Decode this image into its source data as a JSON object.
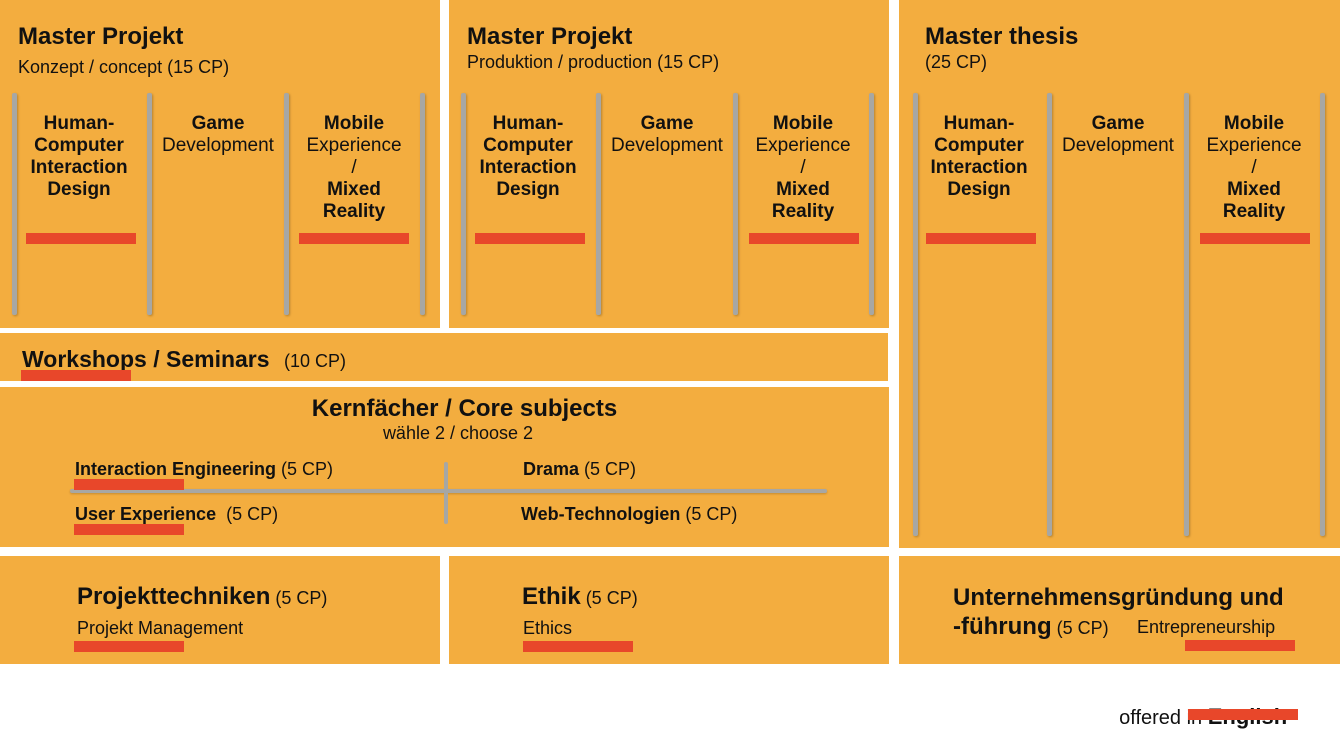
{
  "panels": {
    "mp_konzept": {
      "title": "Master Projekt",
      "subtitle": "Konzept / concept (15 CP)"
    },
    "mp_produktion": {
      "title": "Master Projekt",
      "subtitle": "Produktion / production (15 CP)"
    },
    "thesis": {
      "title": "Master thesis",
      "subtitle": "(25 CP)"
    }
  },
  "columns": {
    "hci": [
      "Human-",
      "Computer",
      "Interaction",
      "Design"
    ],
    "game": [
      "Game",
      "Development"
    ],
    "mobile": {
      "l1": "Mobile",
      "l2": "Experience",
      "l3": "/",
      "l4": "Mixed",
      "l5": "Reality"
    }
  },
  "workshops": {
    "title": "Workshops / Seminars",
    "cp": "(10 CP)"
  },
  "core": {
    "title": "Kernfächer / Core subjects",
    "subtitle": "wähle 2 / choose 2",
    "items": [
      {
        "name": "Interaction Engineering",
        "cp": " (5 CP)"
      },
      {
        "name": "Drama",
        "cp": " (5 CP)"
      },
      {
        "name": "User Experience",
        "cp": "  (5 CP)"
      },
      {
        "name": "Web-Technologien",
        "cp": " (5 CP)"
      }
    ]
  },
  "bottom": {
    "projekt": {
      "title": "Projekttechniken",
      "cp": " (5 CP)",
      "sub": "Projekt Management"
    },
    "ethik": {
      "title": "Ethik",
      "cp": " (5 CP)",
      "sub": "Ethics"
    },
    "unternehmen": {
      "title1": "Unternehmensgründung und",
      "title2": "-führung",
      "cp": " (5 CP)",
      "sub": "Entrepreneurship"
    }
  },
  "legend": {
    "prefix": "offered in ",
    "highlight": "English"
  },
  "colors": {
    "panel": "#f3ad3f",
    "english_marker": "#e8472a",
    "divider": "#a7a7a4",
    "background": "#ffffff"
  }
}
